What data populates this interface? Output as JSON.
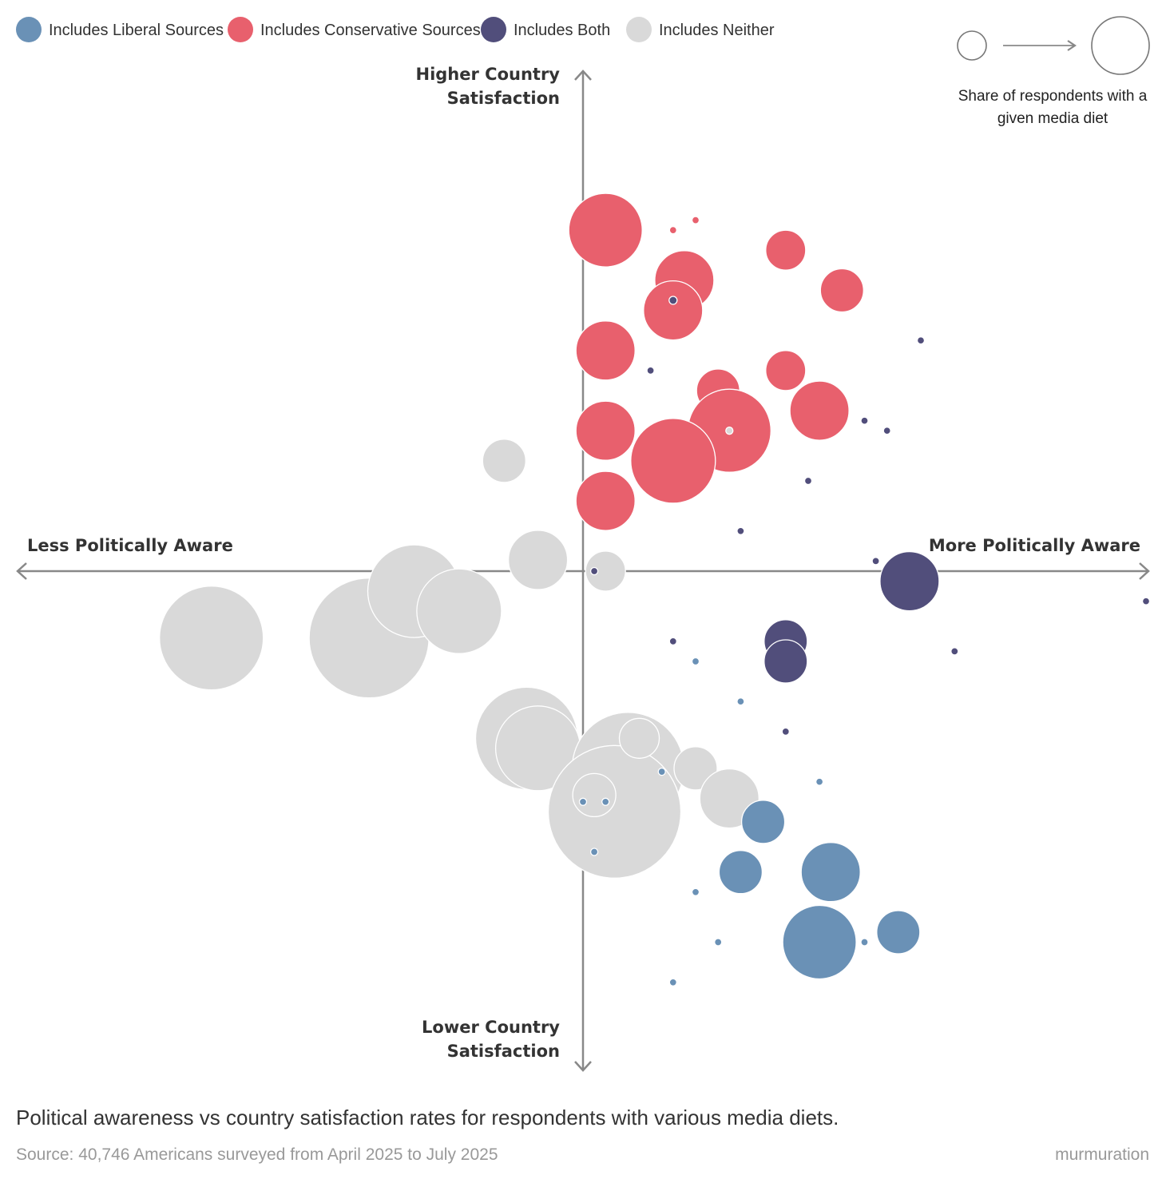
{
  "chart_data": {
    "type": "scatter",
    "subtype": "bubble",
    "xlabel_left": "Less Politically Aware",
    "xlabel_right": "More Politically Aware",
    "ylabel_top": [
      "Higher Country",
      "Satisfaction"
    ],
    "ylabel_bottom": [
      "Lower Country",
      "Satisfaction"
    ],
    "xlim": [
      -50,
      50
    ],
    "ylim": [
      -50,
      50
    ],
    "grid": false,
    "legend_position": "top-left",
    "size_legend": {
      "position": "top-right",
      "label_lines": [
        "Share of respondents with a",
        "given media diet"
      ]
    },
    "colors": {
      "liberal": "#6a91b6",
      "conservative": "#e8606d",
      "both": "#514e7b",
      "neither": "#d9d9d9"
    },
    "legend": [
      {
        "key": "liberal",
        "label": "Includes Liberal Sources"
      },
      {
        "key": "conservative",
        "label": "Includes Conservative Sources"
      },
      {
        "key": "both",
        "label": "Includes Both"
      },
      {
        "key": "neither",
        "label": "Includes Neither"
      }
    ],
    "series": [
      {
        "key": "neither",
        "points": [
          [
            -33.0,
            -6.0,
            6.5
          ],
          [
            -19.0,
            -6.0,
            7.5
          ],
          [
            -15.0,
            -1.8,
            5.8
          ],
          [
            -11.0,
            -3.6,
            5.3
          ],
          [
            -7.0,
            9.9,
            2.7
          ],
          [
            -4.0,
            1.0,
            3.7
          ],
          [
            -5.0,
            -15.0,
            6.4
          ],
          [
            -4.0,
            -15.9,
            5.3
          ],
          [
            4.0,
            -17.7,
            7.0
          ],
          [
            2.8,
            -21.6,
            8.3
          ],
          [
            1.0,
            -20.1,
            2.7
          ],
          [
            5.0,
            -15.0,
            2.5
          ],
          [
            10.0,
            -17.7,
            2.7
          ],
          [
            13.0,
            -20.4,
            3.7
          ],
          [
            2.0,
            0.0,
            2.5
          ],
          [
            1.0,
            10.8,
            0.4
          ]
        ]
      },
      {
        "key": "conservative",
        "points": [
          [
            2.0,
            30.6,
            4.6
          ],
          [
            8.0,
            30.6,
            0.4
          ],
          [
            10.0,
            31.5,
            0.4
          ],
          [
            9.0,
            26.1,
            3.7
          ],
          [
            18.0,
            28.8,
            2.5
          ],
          [
            23.0,
            25.2,
            2.7
          ],
          [
            8.0,
            23.4,
            3.7
          ],
          [
            2.0,
            19.8,
            3.7
          ],
          [
            18.0,
            18.0,
            2.5
          ],
          [
            12.0,
            16.2,
            2.7
          ],
          [
            21.0,
            14.4,
            3.7
          ],
          [
            2.0,
            12.6,
            3.7
          ],
          [
            13.0,
            12.6,
            5.2
          ],
          [
            8.0,
            9.9,
            5.3
          ],
          [
            2.0,
            6.3,
            3.7
          ]
        ]
      },
      {
        "key": "both",
        "points": [
          [
            8.0,
            24.3,
            0.5
          ],
          [
            30.0,
            20.7,
            0.4
          ],
          [
            6.0,
            18.0,
            0.4
          ],
          [
            25.0,
            13.5,
            0.4
          ],
          [
            27.0,
            12.6,
            0.4
          ],
          [
            20.0,
            8.1,
            0.4
          ],
          [
            14.0,
            3.6,
            0.4
          ],
          [
            26.0,
            0.9,
            0.4
          ],
          [
            29.0,
            -0.9,
            3.7
          ],
          [
            50.0,
            -2.7,
            0.4
          ],
          [
            8.0,
            -6.3,
            0.4
          ],
          [
            18.0,
            -6.3,
            2.7
          ],
          [
            18.0,
            -8.1,
            2.7
          ],
          [
            33.0,
            -7.2,
            0.4
          ],
          [
            18.0,
            -14.4,
            0.4
          ],
          [
            1.0,
            0.0,
            0.4
          ]
        ]
      },
      {
        "key": "liberal",
        "points": [
          [
            10.0,
            -8.1,
            0.4
          ],
          [
            14.0,
            -11.7,
            0.4
          ],
          [
            7.0,
            -18.0,
            0.4
          ],
          [
            21.0,
            -18.9,
            0.4
          ],
          [
            0.0,
            -20.7,
            0.4
          ],
          [
            2.0,
            -20.7,
            0.4
          ],
          [
            16.0,
            -22.5,
            2.7
          ],
          [
            1.0,
            -25.2,
            0.4
          ],
          [
            14.0,
            -27.0,
            2.7
          ],
          [
            22.0,
            -27.0,
            3.7
          ],
          [
            10.0,
            -28.8,
            0.4
          ],
          [
            28.0,
            -32.4,
            2.7
          ],
          [
            12.0,
            -33.3,
            0.4
          ],
          [
            21.0,
            -33.3,
            4.6
          ],
          [
            25.0,
            -33.3,
            0.4
          ],
          [
            8.0,
            -36.9,
            0.4
          ]
        ]
      },
      {
        "key": "neither",
        "points": [
          [
            13.0,
            12.6,
            0.4
          ]
        ]
      }
    ]
  },
  "caption": "Political awareness vs country satisfaction rates for respondents with various media diets.",
  "source": "Source: 40,746 Americans surveyed from April 2025 to July 2025",
  "brand": "murmuration"
}
